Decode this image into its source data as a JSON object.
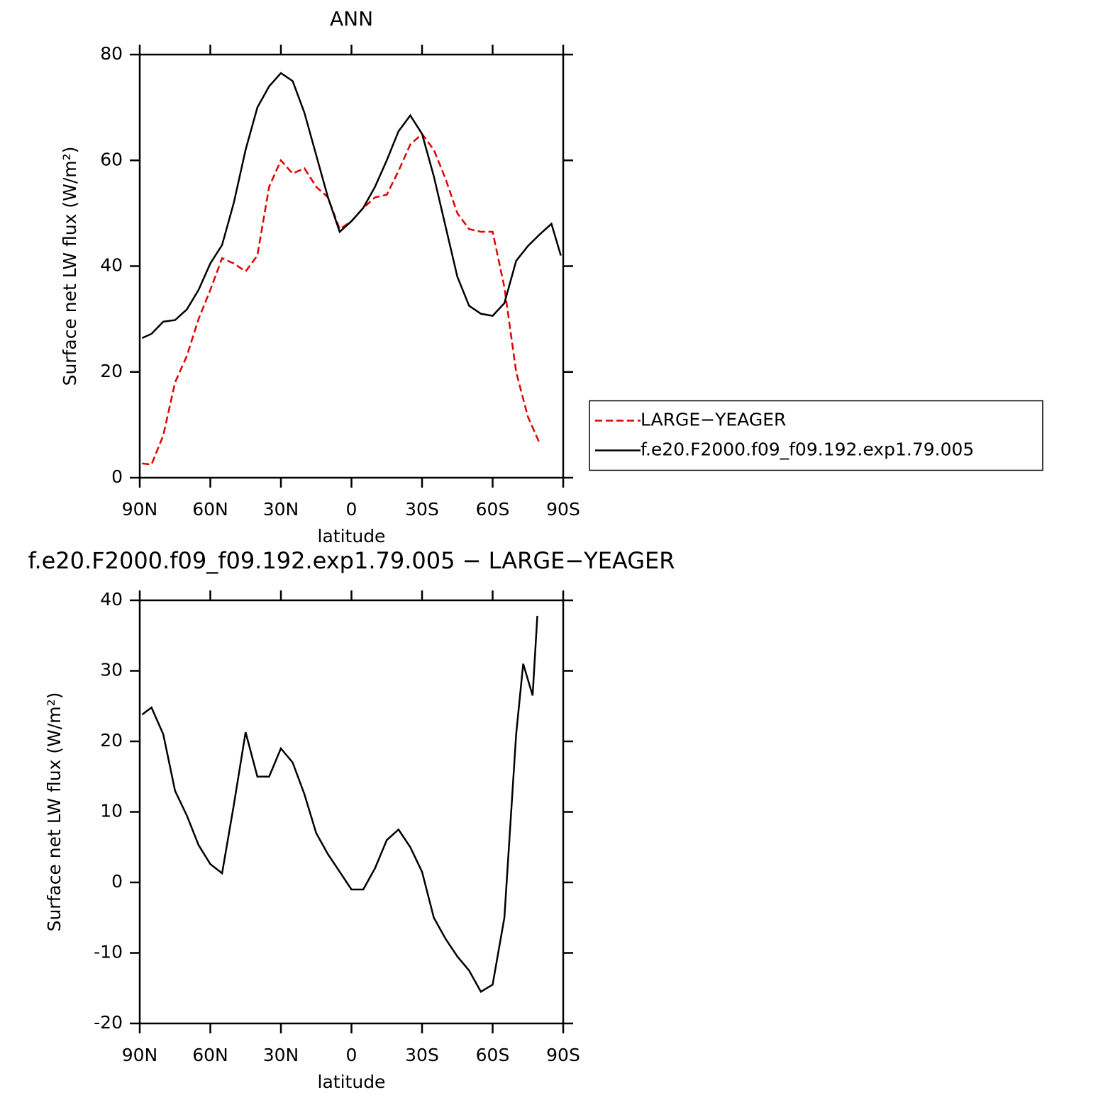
{
  "chart_data": [
    {
      "type": "line",
      "title": "ANN",
      "xlabel": "latitude",
      "ylabel": "Surface net LW flux (W/m²)",
      "x": [
        89,
        85,
        80,
        75,
        70,
        65,
        60,
        55,
        50,
        45,
        40,
        35,
        30,
        25,
        20,
        15,
        10,
        5,
        0,
        -5,
        -10,
        -15,
        -20,
        -25,
        -30,
        -35,
        -40,
        -45,
        -50,
        -55,
        -60,
        -65,
        -70,
        -75,
        -80,
        -85,
        -89
      ],
      "series": [
        {
          "name": "LARGE−YEAGER",
          "color": "#e00000",
          "style": "dashed",
          "values": [
            2.7,
            2.5,
            8,
            18,
            23,
            30,
            35.5,
            41.5,
            40.5,
            39,
            42,
            55,
            60,
            57.5,
            58.5,
            55,
            53,
            47,
            48.5,
            51,
            53,
            53.5,
            58,
            63,
            65,
            62,
            56.5,
            50,
            47,
            46.5,
            46.5,
            36,
            20,
            11.5,
            6.5,
            null,
            null
          ]
        },
        {
          "name": "f.e20.F2000.f09_f09.192.exp1.79.005",
          "color": "#000000",
          "style": "solid",
          "values": [
            26.4,
            27.2,
            29.5,
            29.8,
            31.8,
            35.5,
            40.5,
            44,
            52,
            62,
            70,
            74,
            76.5,
            75,
            69,
            61,
            53,
            46.5,
            48.5,
            51,
            55,
            60,
            65.5,
            68.5,
            65,
            57,
            47.5,
            38,
            32.5,
            31,
            30.6,
            33,
            41,
            43.8,
            46,
            48,
            42
          ]
        }
      ],
      "xlim": [
        90,
        -90
      ],
      "xticks": [
        {
          "value": 90,
          "label": "90N"
        },
        {
          "value": 60,
          "label": "60N"
        },
        {
          "value": 30,
          "label": "30N"
        },
        0,
        {
          "value": -30,
          "label": "30S"
        },
        {
          "value": -60,
          "label": "60S"
        },
        {
          "value": -90,
          "label": "90S"
        }
      ],
      "ylim": [
        0,
        80
      ],
      "yticks": [
        0,
        20,
        40,
        60,
        80
      ],
      "grid": false,
      "legend": "right"
    },
    {
      "type": "line",
      "title": "f.e20.F2000.f09_f09.192.exp1.79.005 − LARGE−YEAGER",
      "xlabel": "latitude",
      "ylabel": "Surface net LW flux (W/m²)",
      "x": [
        89,
        85,
        80,
        75,
        70,
        65,
        60,
        55,
        50,
        45,
        40,
        35,
        30,
        25,
        20,
        15,
        10,
        5,
        0,
        -5,
        -10,
        -15,
        -20,
        -25,
        -30,
        -35,
        -40,
        -45,
        -50,
        -55,
        -60,
        -65,
        -70,
        -73,
        -77,
        -79
      ],
      "series": [
        {
          "color": "#000000",
          "style": "solid",
          "values": [
            23.8,
            24.8,
            21,
            13,
            9.5,
            5.3,
            2.6,
            1.3,
            11,
            21.3,
            15,
            15,
            19,
            17,
            12.5,
            7,
            4,
            1.5,
            -1,
            -1,
            2,
            6,
            7.5,
            5,
            1.5,
            -5,
            -8,
            -10.5,
            -12.5,
            -15.5,
            -14.5,
            -5,
            21,
            31,
            26.5,
            37.8
          ]
        }
      ],
      "xlim": [
        90,
        -90
      ],
      "xticks": [
        {
          "value": 90,
          "label": "90N"
        },
        {
          "value": 60,
          "label": "60N"
        },
        {
          "value": 30,
          "label": "30N"
        },
        0,
        {
          "value": -30,
          "label": "30S"
        },
        {
          "value": -60,
          "label": "60S"
        },
        {
          "value": -90,
          "label": "90S"
        }
      ],
      "ylim": [
        -20,
        40
      ],
      "yticks": [
        -20,
        -10,
        0,
        10,
        20,
        30,
        40
      ],
      "grid": false
    }
  ]
}
